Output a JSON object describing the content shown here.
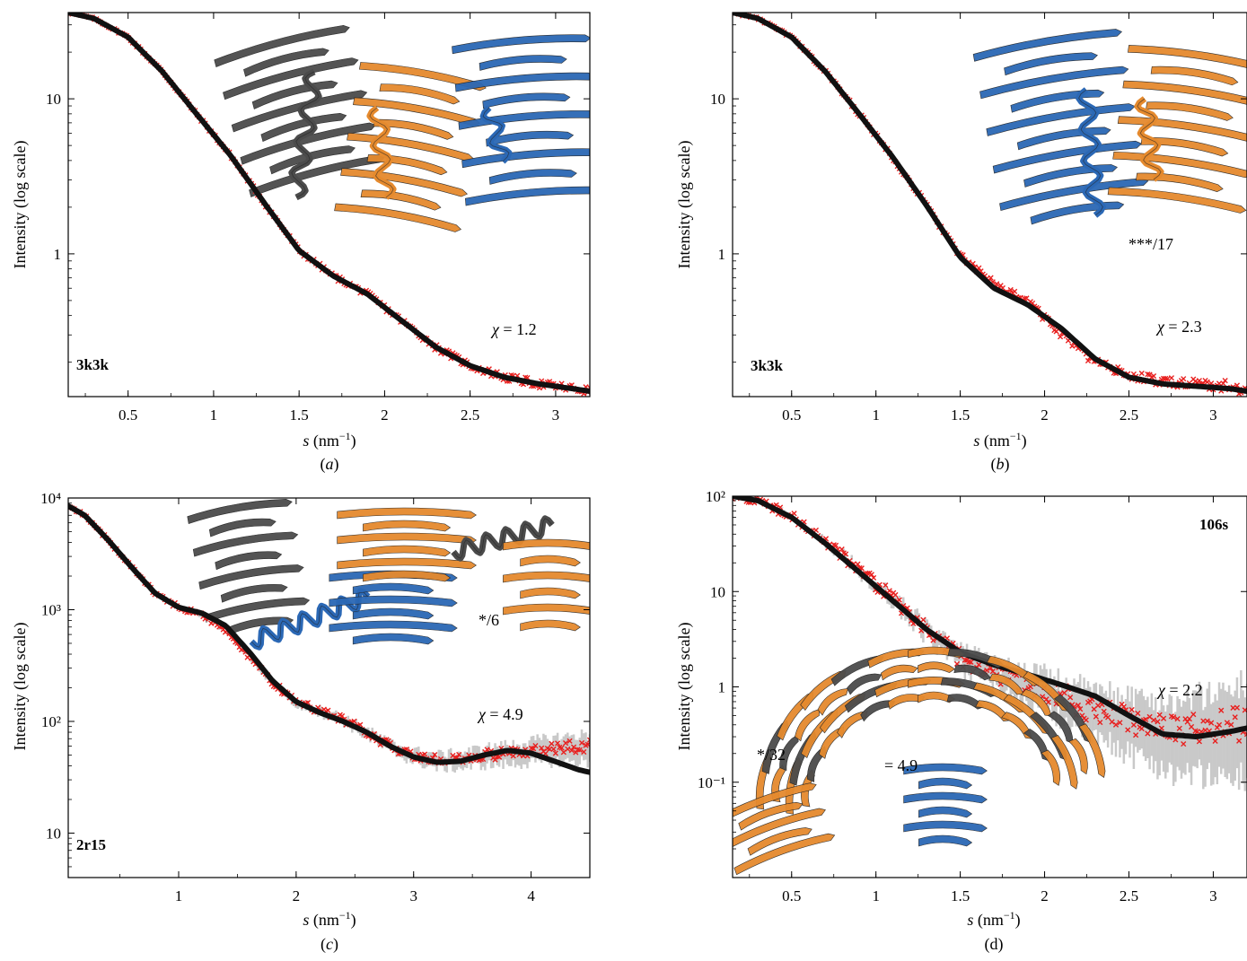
{
  "colors": {
    "fit_curve": "#111111",
    "experimental": "#e8201f",
    "error_bars": "#c9c9c9",
    "struct_gray": "#4b4b4b",
    "struct_orange": "#e58a2e",
    "struct_blue": "#2b68b5"
  },
  "chart_data": [
    {
      "type": "scatter",
      "panel_label": "(a)",
      "pdb_label": "3k3k",
      "chi_label": "χ = 1.2",
      "annotation": "",
      "xlabel": "s (nm−1)",
      "ylabel": "Intensity (log scale)",
      "xlim": [
        0.15,
        3.2
      ],
      "ylim": [
        0.12,
        36
      ],
      "log_y": true,
      "x_ticks": [
        0.5,
        1,
        1.5,
        2,
        2.5,
        3
      ],
      "x_tick_labels": [
        "0.5",
        "1",
        "1.5",
        "2",
        "2.5",
        "3"
      ],
      "y_ticks": [
        1,
        10
      ],
      "y_tick_labels": [
        "1",
        "10"
      ],
      "structures": [
        "gray",
        "orange",
        "blue"
      ],
      "series": [
        {
          "name": "",
          "kind": "fit",
          "points": [
            [
              0.15,
              36
            ],
            [
              0.3,
              33
            ],
            [
              0.5,
              25
            ],
            [
              0.7,
              15
            ],
            [
              0.9,
              8
            ],
            [
              1.1,
              4.3
            ],
            [
              1.3,
              2.1
            ],
            [
              1.5,
              1.05
            ],
            [
              1.7,
              0.72
            ],
            [
              1.9,
              0.55
            ],
            [
              2.1,
              0.37
            ],
            [
              2.3,
              0.25
            ],
            [
              2.5,
              0.19
            ],
            [
              2.7,
              0.16
            ],
            [
              2.9,
              0.145
            ],
            [
              3.1,
              0.135
            ],
            [
              3.2,
              0.13
            ]
          ]
        },
        {
          "name": "",
          "kind": "data",
          "points": [
            [
              0.15,
              36
            ],
            [
              0.3,
              33
            ],
            [
              0.5,
              25
            ],
            [
              0.7,
              15
            ],
            [
              0.9,
              8
            ],
            [
              1.1,
              4.3
            ],
            [
              1.3,
              2.1
            ],
            [
              1.5,
              1.05
            ],
            [
              1.7,
              0.72
            ],
            [
              1.9,
              0.55
            ],
            [
              2.1,
              0.37
            ],
            [
              2.3,
              0.25
            ],
            [
              2.5,
              0.19
            ],
            [
              2.7,
              0.16
            ],
            [
              2.9,
              0.145
            ],
            [
              3.1,
              0.135
            ],
            [
              3.2,
              0.13
            ]
          ],
          "scatter": 0.04,
          "errors": 0.0
        }
      ]
    },
    {
      "type": "scatter",
      "panel_label": "(b)",
      "pdb_label": "3k3k",
      "chi_label": "χ = 2.3",
      "annotation": "***/17",
      "xlabel": "s (nm−1)",
      "ylabel": "Intensity (log scale)",
      "xlim": [
        0.15,
        3.2
      ],
      "ylim": [
        0.12,
        36
      ],
      "log_y": true,
      "x_ticks": [
        0.5,
        1,
        1.5,
        2,
        2.5,
        3
      ],
      "x_tick_labels": [
        "0.5",
        "1",
        "1.5",
        "2",
        "2.5",
        "3"
      ],
      "y_ticks": [
        1,
        10
      ],
      "y_tick_labels": [
        "1",
        "10"
      ],
      "structures": [
        "blue",
        "orange"
      ],
      "series": [
        {
          "name": "",
          "kind": "fit",
          "points": [
            [
              0.15,
              36
            ],
            [
              0.3,
              33
            ],
            [
              0.5,
              25
            ],
            [
              0.7,
              15
            ],
            [
              0.9,
              8
            ],
            [
              1.1,
              4.2
            ],
            [
              1.3,
              2.05
            ],
            [
              1.5,
              0.95
            ],
            [
              1.7,
              0.6
            ],
            [
              1.9,
              0.47
            ],
            [
              2.1,
              0.33
            ],
            [
              2.3,
              0.21
            ],
            [
              2.5,
              0.16
            ],
            [
              2.7,
              0.145
            ],
            [
              2.9,
              0.14
            ],
            [
              3.1,
              0.135
            ],
            [
              3.2,
              0.13
            ]
          ]
        },
        {
          "name": "",
          "kind": "data",
          "points": [
            [
              0.15,
              36
            ],
            [
              0.3,
              33
            ],
            [
              0.5,
              25
            ],
            [
              0.7,
              15
            ],
            [
              0.9,
              8
            ],
            [
              1.1,
              4.2
            ],
            [
              1.3,
              2.05
            ],
            [
              1.5,
              0.97
            ],
            [
              1.7,
              0.64
            ],
            [
              1.9,
              0.5
            ],
            [
              2.1,
              0.3
            ],
            [
              2.3,
              0.2
            ],
            [
              2.5,
              0.165
            ],
            [
              2.7,
              0.15
            ],
            [
              2.9,
              0.145
            ],
            [
              3.1,
              0.14
            ],
            [
              3.2,
              0.13
            ]
          ],
          "scatter": 0.05,
          "errors": 0.0
        }
      ]
    },
    {
      "type": "scatter",
      "panel_label": "(c)",
      "pdb_label": "2r15",
      "chi_label": "χ =  4.9",
      "annotation": "*/6",
      "xlabel": "s (nm−1)",
      "ylabel": "Intensity (log scale)",
      "xlim": [
        0.06,
        4.5
      ],
      "ylim": [
        4,
        10000
      ],
      "log_y": true,
      "x_ticks": [
        1,
        2,
        3,
        4
      ],
      "x_tick_labels": [
        "1",
        "2",
        "3",
        "4"
      ],
      "y_ticks": [
        10,
        100,
        1000,
        10000
      ],
      "y_tick_labels": [
        "10",
        "10²",
        "10³",
        "10⁴"
      ],
      "structures": [
        "gray",
        "blue",
        "orange"
      ],
      "series": [
        {
          "name": "",
          "kind": "fit",
          "points": [
            [
              0.06,
              8500
            ],
            [
              0.2,
              7000
            ],
            [
              0.4,
              4200
            ],
            [
              0.6,
              2400
            ],
            [
              0.8,
              1400
            ],
            [
              1.0,
              1050
            ],
            [
              1.2,
              930
            ],
            [
              1.4,
              720
            ],
            [
              1.6,
              420
            ],
            [
              1.8,
              230
            ],
            [
              2.0,
              150
            ],
            [
              2.2,
              120
            ],
            [
              2.4,
              100
            ],
            [
              2.6,
              80
            ],
            [
              2.8,
              60
            ],
            [
              3.0,
              48
            ],
            [
              3.2,
              43
            ],
            [
              3.4,
              44
            ],
            [
              3.6,
              50
            ],
            [
              3.8,
              55
            ],
            [
              4.0,
              52
            ],
            [
              4.2,
              44
            ],
            [
              4.4,
              37
            ],
            [
              4.5,
              35
            ]
          ]
        },
        {
          "name": "",
          "kind": "data",
          "points": [
            [
              0.06,
              8500
            ],
            [
              0.2,
              7000
            ],
            [
              0.4,
              4200
            ],
            [
              0.6,
              2400
            ],
            [
              0.8,
              1400
            ],
            [
              1.0,
              1050
            ],
            [
              1.2,
              900
            ],
            [
              1.4,
              650
            ],
            [
              1.6,
              380
            ],
            [
              1.8,
              220
            ],
            [
              2.0,
              150
            ],
            [
              2.2,
              125
            ],
            [
              2.4,
              105
            ],
            [
              2.6,
              80
            ],
            [
              2.8,
              60
            ],
            [
              3.0,
              50
            ],
            [
              3.2,
              45
            ],
            [
              3.4,
              46
            ],
            [
              3.6,
              50
            ],
            [
              3.8,
              52
            ],
            [
              4.0,
              55
            ],
            [
              4.2,
              58
            ],
            [
              4.4,
              60
            ],
            [
              4.5,
              60
            ]
          ],
          "scatter": 0.08,
          "errors": 0.15
        }
      ]
    },
    {
      "type": "scatter",
      "panel_label": "(d)",
      "pdb_label": "106s",
      "chi_label": "χ = 2.2",
      "annotation": "*/32",
      "overlap_text": "= 4.9",
      "xlabel": "s (nm−1)",
      "ylabel": "Intensity (log scale)",
      "xlim": [
        0.15,
        3.2
      ],
      "ylim": [
        0.01,
        100
      ],
      "log_y": true,
      "x_ticks": [
        0.5,
        1,
        1.5,
        2,
        2.5,
        3
      ],
      "x_tick_labels": [
        "0.5",
        "1",
        "1.5",
        "2",
        "2.5",
        "3"
      ],
      "y_ticks": [
        0.1,
        1,
        10,
        100
      ],
      "y_tick_labels": [
        "10⁻¹",
        "1",
        "10",
        "10²"
      ],
      "structures": [
        "orange",
        "blue"
      ],
      "series": [
        {
          "name": "",
          "kind": "fit",
          "points": [
            [
              0.15,
              100
            ],
            [
              0.3,
              90
            ],
            [
              0.5,
              60
            ],
            [
              0.7,
              32
            ],
            [
              0.9,
              16
            ],
            [
              1.1,
              8
            ],
            [
              1.3,
              4
            ],
            [
              1.5,
              2.3
            ],
            [
              1.7,
              1.7
            ],
            [
              1.9,
              1.35
            ],
            [
              2.1,
              1.05
            ],
            [
              2.3,
              0.8
            ],
            [
              2.5,
              0.5
            ],
            [
              2.7,
              0.32
            ],
            [
              2.9,
              0.3
            ],
            [
              3.1,
              0.34
            ],
            [
              3.2,
              0.37
            ]
          ]
        },
        {
          "name": "",
          "kind": "data",
          "points": [
            [
              0.15,
              100
            ],
            [
              0.3,
              90
            ],
            [
              0.5,
              62
            ],
            [
              0.7,
              34
            ],
            [
              0.9,
              17
            ],
            [
              1.1,
              8.5
            ],
            [
              1.3,
              3.9
            ],
            [
              1.5,
              2.0
            ],
            [
              1.7,
              1.4
            ],
            [
              1.9,
              1.1
            ],
            [
              2.1,
              0.8
            ],
            [
              2.3,
              0.55
            ],
            [
              2.5,
              0.45
            ],
            [
              2.7,
              0.35
            ],
            [
              2.9,
              0.35
            ],
            [
              3.1,
              0.4
            ],
            [
              3.2,
              0.4
            ]
          ],
          "scatter": 0.25,
          "errors": 0.6
        }
      ]
    }
  ]
}
